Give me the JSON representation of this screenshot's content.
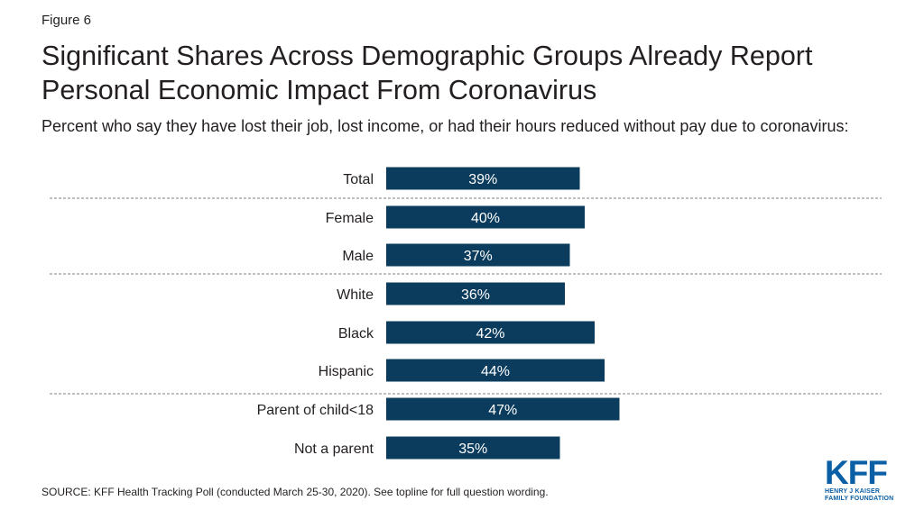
{
  "figure_label": "Figure 6",
  "title": "Significant Shares Across Demographic Groups Already Report Personal Economic Impact From Coronavirus",
  "subtitle": "Percent who say they have lost their job, lost income, or had their hours reduced without pay due to coronavirus:",
  "source": "SOURCE: KFF Health Tracking Poll (conducted March 25-30, 2020). See topline for full question wording.",
  "logo": {
    "text": "KFF",
    "line1": "HENRY J KAISER",
    "line2": "FAMILY FOUNDATION",
    "color": "#0b5fa5"
  },
  "colors": {
    "bar": "#0b3c5d",
    "separator": "#7f7f7f",
    "text": "#231f20"
  },
  "chart_data": {
    "type": "bar",
    "orientation": "horizontal",
    "categories": [
      "Total",
      "Female",
      "Male",
      "White",
      "Black",
      "Hispanic",
      "Parent of child<18",
      "Not a parent"
    ],
    "values": [
      39,
      40,
      37,
      36,
      42,
      44,
      47,
      35
    ],
    "value_labels": [
      "39%",
      "40%",
      "37%",
      "36%",
      "42%",
      "44%",
      "47%",
      "35%"
    ],
    "unit": "%",
    "groups": [
      [
        "Total"
      ],
      [
        "Female",
        "Male"
      ],
      [
        "White",
        "Black",
        "Hispanic"
      ],
      [
        "Parent of child<18",
        "Not a parent"
      ]
    ],
    "xlim": [
      0,
      100
    ],
    "grid": false,
    "legend": "none"
  }
}
